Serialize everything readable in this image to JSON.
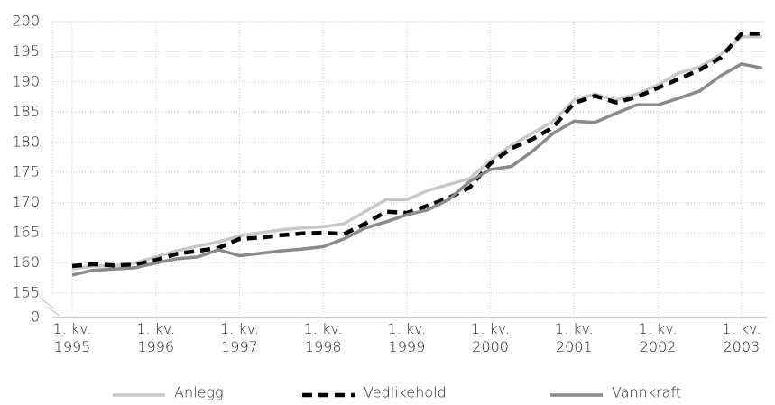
{
  "chart_data": {
    "type": "line",
    "categories": [
      "1. kv. 1995",
      null,
      null,
      null,
      "1. kv. 1996",
      null,
      null,
      null,
      "1. kv. 1997",
      null,
      null,
      null,
      "1. kv. 1998",
      null,
      null,
      null,
      "1. kv. 1999",
      null,
      null,
      null,
      "1. kv. 2000",
      null,
      null,
      null,
      "1. kv. 2001",
      null,
      null,
      null,
      "1. kv. 2002",
      null,
      null,
      null,
      "1. kv. 2003",
      null
    ],
    "series": [
      {
        "name": "Anlegg",
        "color": "#c8c8c8",
        "dash": false,
        "values": [
          159,
          159.5,
          159.5,
          160,
          161,
          162,
          162.8,
          163.5,
          164.5,
          165,
          165.5,
          165.8,
          166,
          166.5,
          168.5,
          170.5,
          170.5,
          172,
          173,
          174,
          177,
          179.5,
          181.5,
          183.5,
          187,
          188,
          187,
          188,
          189.5,
          191.5,
          192.5,
          194.5,
          197.5,
          197.5
        ]
      },
      {
        "name": "Vedlikehold",
        "color": "#000000",
        "dash": true,
        "values": [
          159.5,
          159.8,
          159.6,
          159.7,
          160.5,
          161.5,
          162,
          162.5,
          164,
          164.2,
          164.6,
          164.9,
          165,
          164.8,
          166.5,
          168.5,
          168.3,
          169.5,
          170.8,
          172.5,
          176.5,
          179,
          180.5,
          182.5,
          186.5,
          187.7,
          186.6,
          187.5,
          189,
          190.5,
          192,
          194,
          198,
          198
        ]
      },
      {
        "name": "Vannkraft",
        "color": "#8a8a8a",
        "dash": false,
        "values": [
          158,
          158.8,
          159,
          159.2,
          160,
          160.7,
          161,
          162.2,
          161.2,
          161.6,
          162,
          162.3,
          162.7,
          164,
          165.8,
          166.8,
          168,
          168.8,
          170.5,
          173.5,
          175.5,
          176,
          178.5,
          181.5,
          183.5,
          183.3,
          184.8,
          186.2,
          186.2,
          187.3,
          188.5,
          191,
          193,
          192.3
        ]
      }
    ],
    "ylim": [
      155,
      200
    ],
    "yticks": [
      0,
      155,
      160,
      165,
      170,
      175,
      180,
      185,
      190,
      195,
      200
    ],
    "axis_break": true,
    "grid": true
  }
}
